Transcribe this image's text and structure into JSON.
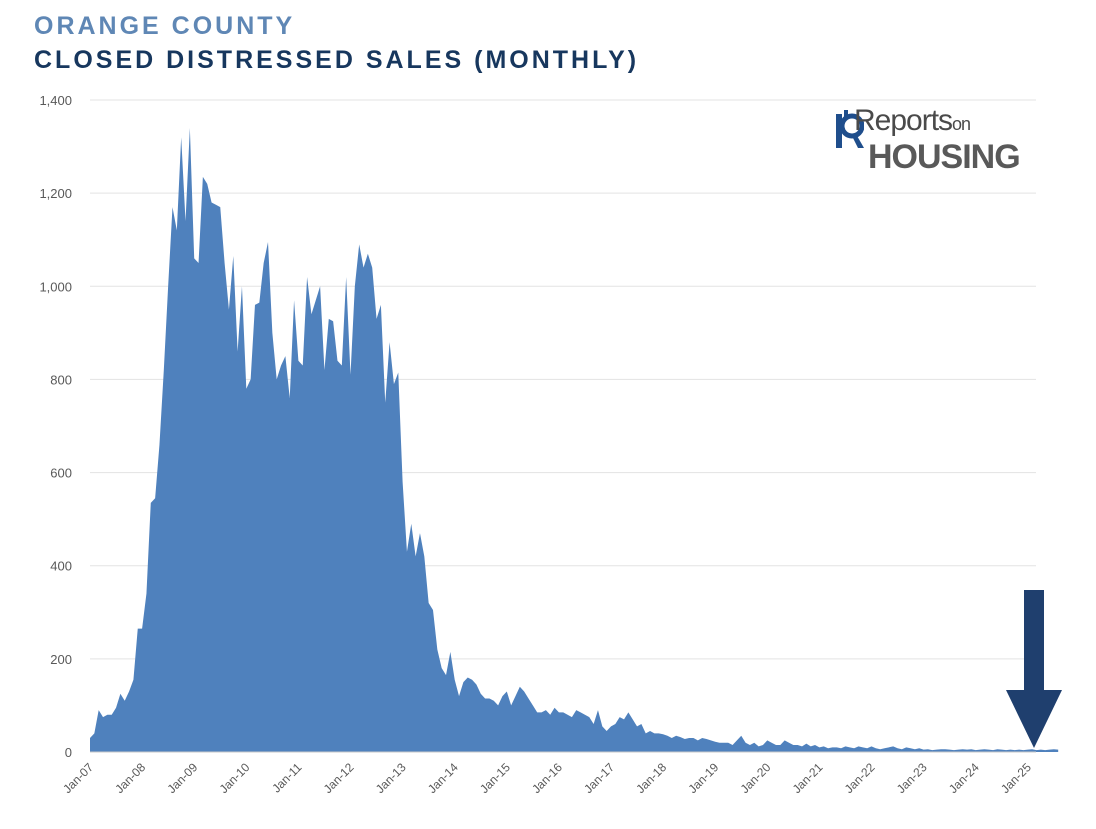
{
  "title": {
    "line1": "ORANGE COUNTY",
    "line2": "CLOSED DISTRESSED SALES (MONTHLY)"
  },
  "logo": {
    "word1": "Reports",
    "word1_suffix": "on",
    "word2": "HOUSING"
  },
  "colors": {
    "area": "#4f81bd",
    "grid": "#e3e3e3",
    "arrow": "#1f3f6e",
    "title_line1": "#5f87b5",
    "title_line2": "#17375e"
  },
  "chart_data": {
    "type": "area",
    "title": "CLOSED DISTRESSED SALES (MONTHLY)",
    "xlabel": "",
    "ylabel": "",
    "ylim": [
      0,
      1400
    ],
    "yticks": [
      0,
      200,
      400,
      600,
      800,
      1000,
      1200,
      1400
    ],
    "ytick_labels": [
      "0",
      "200",
      "400",
      "600",
      "800",
      "1,000",
      "1,200",
      "1,400"
    ],
    "xtick_labels": [
      "Jan-07",
      "Jan-08",
      "Jan-09",
      "Jan-10",
      "Jan-11",
      "Jan-12",
      "Jan-13",
      "Jan-14",
      "Jan-15",
      "Jan-16",
      "Jan-17",
      "Jan-18",
      "Jan-19",
      "Jan-20",
      "Jan-21",
      "Jan-22",
      "Jan-23",
      "Jan-24",
      "Jan-25"
    ],
    "x_start": "Jan-07",
    "grid": true,
    "legend": "none",
    "annotation": "down arrow at latest month",
    "series": [
      {
        "values": [
          30,
          40,
          90,
          75,
          80,
          80,
          95,
          125,
          110,
          130,
          155,
          265,
          265,
          340,
          535,
          545,
          660,
          820,
          1000,
          1170,
          1120,
          1320,
          1140,
          1340,
          1060,
          1050,
          1235,
          1220,
          1180,
          1175,
          1170,
          1050,
          950,
          1065,
          860,
          1000,
          780,
          800,
          960,
          965,
          1050,
          1095,
          900,
          800,
          830,
          850,
          760,
          970,
          840,
          830,
          1020,
          940,
          970,
          1000,
          820,
          930,
          925,
          840,
          830,
          1020,
          810,
          1000,
          1090,
          1040,
          1070,
          1040,
          930,
          960,
          750,
          880,
          790,
          815,
          580,
          430,
          490,
          420,
          470,
          420,
          320,
          305,
          220,
          180,
          165,
          215,
          155,
          120,
          150,
          160,
          155,
          145,
          125,
          115,
          115,
          110,
          100,
          120,
          130,
          100,
          120,
          140,
          130,
          115,
          100,
          85,
          85,
          90,
          80,
          95,
          85,
          85,
          80,
          75,
          90,
          85,
          80,
          75,
          60,
          90,
          55,
          45,
          55,
          60,
          75,
          70,
          85,
          70,
          55,
          60,
          40,
          45,
          40,
          40,
          38,
          35,
          30,
          35,
          32,
          28,
          30,
          30,
          25,
          30,
          28,
          25,
          22,
          20,
          20,
          20,
          15,
          25,
          35,
          20,
          15,
          20,
          12,
          15,
          25,
          20,
          15,
          15,
          25,
          20,
          15,
          15,
          12,
          18,
          12,
          15,
          10,
          12,
          8,
          10,
          10,
          8,
          12,
          10,
          8,
          12,
          10,
          8,
          12,
          8,
          6,
          8,
          10,
          12,
          8,
          6,
          10,
          8,
          6,
          8,
          5,
          6,
          4,
          5,
          6,
          6,
          5,
          4,
          5,
          6,
          5,
          6,
          4,
          5,
          6,
          5,
          4,
          6,
          5,
          4,
          5,
          4,
          5,
          4,
          5,
          6,
          4,
          5,
          4,
          5,
          6,
          5
        ]
      }
    ]
  }
}
